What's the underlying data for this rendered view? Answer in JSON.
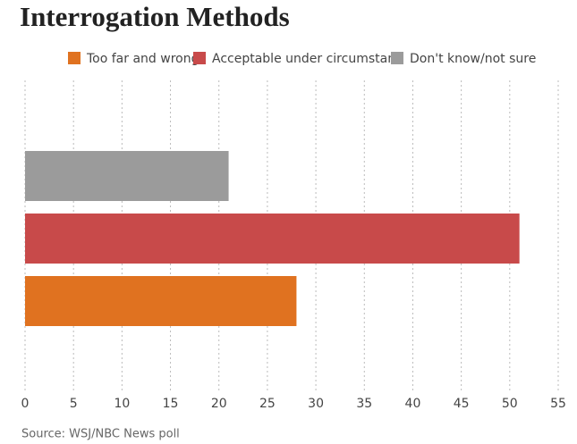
{
  "chart_data": {
    "type": "hbar",
    "title": "Interrogation Methods",
    "categories": [
      null
    ],
    "series": [
      {
        "name": "Too far and wrong",
        "color": "#e07220",
        "values": [
          28
        ]
      },
      {
        "name": "Acceptable under circumstanc",
        "color": "#c84a4a",
        "values": [
          51
        ]
      },
      {
        "name": "Don't know/not sure",
        "color": "#9b9b9b",
        "values": [
          21
        ]
      }
    ],
    "xlim": [
      0,
      55
    ],
    "xticks": [
      0,
      5,
      10,
      15,
      20,
      25,
      30,
      35,
      40,
      45,
      50,
      55
    ],
    "grid": true,
    "legend": "top",
    "source": "Source: WSJ/NBC News poll"
  }
}
